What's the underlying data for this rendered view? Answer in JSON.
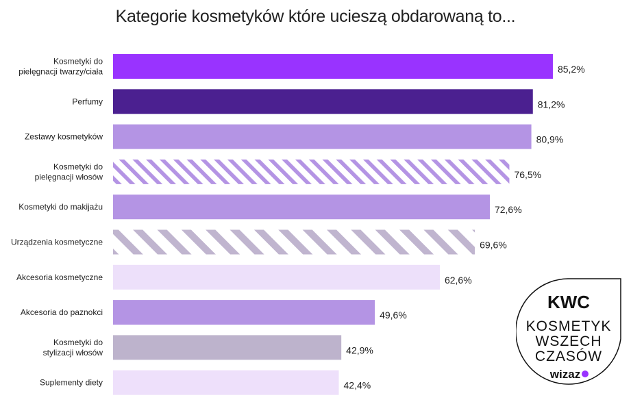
{
  "chart_data": {
    "type": "bar",
    "orientation": "horizontal",
    "title": "Kategorie kosmetyków które ucieszą obdarowaną to...",
    "xlabel": "",
    "ylabel": "",
    "grid": false,
    "categories": [
      [
        "Kosmetyki do",
        "pielęgnacji twarzy/ciała"
      ],
      [
        "Perfumy"
      ],
      [
        "Zestawy kosmetyków"
      ],
      [
        "Kosmetyki do",
        "pielęgnacji włosów"
      ],
      [
        "Kosmetyki do makijażu"
      ],
      [
        "Urządzenia kosmetyczne"
      ],
      [
        "Akcesoria kosmetyczne"
      ],
      [
        "Akcesoria do paznokci"
      ],
      [
        "Kosmetyki do",
        "stylizacji włosów"
      ],
      [
        "Suplementy diety"
      ]
    ],
    "values": [
      85.2,
      81.2,
      80.9,
      76.5,
      72.6,
      69.6,
      62.6,
      49.6,
      42.9,
      42.4
    ],
    "value_labels": [
      "85,2%",
      "81,2%",
      "80,9%",
      "76,5%",
      "72,6%",
      "69,6%",
      "62,6%",
      "49,6%",
      "42,9%",
      "42,4%"
    ],
    "styles": [
      {
        "color": "#9933ff",
        "pattern": "solid"
      },
      {
        "color": "#4b2090",
        "pattern": "solid"
      },
      {
        "color": "#b494e4",
        "pattern": "solid"
      },
      {
        "color": "#b494e4",
        "pattern": "stripes"
      },
      {
        "color": "#b494e4",
        "pattern": "solid"
      },
      {
        "color": "#c0b5cf",
        "pattern": "stripes"
      },
      {
        "color": "#ede0fa",
        "pattern": "solid"
      },
      {
        "color": "#b494e4",
        "pattern": "solid"
      },
      {
        "color": "#bdb3cc",
        "pattern": "solid"
      },
      {
        "color": "#eee0fb",
        "pattern": "solid"
      }
    ]
  },
  "badge": {
    "logo": "KWC",
    "lines": [
      "KOSMETYK",
      "WSZECH",
      "CZASÓW"
    ],
    "brand": "wizaz",
    "brand_dot_color": "#9933ff"
  }
}
